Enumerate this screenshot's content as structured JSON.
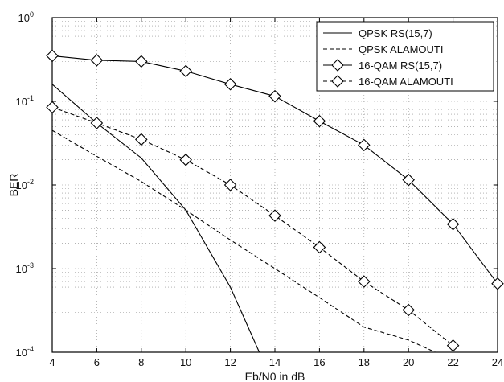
{
  "chart_data": {
    "type": "line",
    "title": "",
    "xlabel": "Eb/N0 in dB",
    "ylabel": "BER",
    "xlim": [
      4,
      24
    ],
    "ylim": [
      0.0001,
      1
    ],
    "yscale": "log",
    "grid": true,
    "legend_position": "top-right",
    "x_ticks": [
      4,
      6,
      8,
      10,
      12,
      14,
      16,
      18,
      20,
      22,
      24
    ],
    "x_tick_labels": [
      "4",
      "6",
      "8",
      "10",
      "12",
      "14",
      "16",
      "18",
      "20",
      "22",
      "24"
    ],
    "y_ticks": [
      {
        "value": 1,
        "base": "10",
        "exp": "0"
      },
      {
        "value": 0.1,
        "base": "10",
        "exp": "-1"
      },
      {
        "value": 0.01,
        "base": "10",
        "exp": "-2"
      },
      {
        "value": 0.001,
        "base": "10",
        "exp": "-3"
      },
      {
        "value": 0.0001,
        "base": "10",
        "exp": "-4"
      }
    ],
    "series": [
      {
        "name": "QPSK RS(15,7)",
        "style": "solid",
        "marker": "none",
        "x": [
          4,
          6,
          8,
          10,
          12,
          13.3
        ],
        "y": [
          0.16,
          0.055,
          0.021,
          0.005,
          0.0006,
          0.0001
        ]
      },
      {
        "name": "QPSK ALAMOUTI",
        "style": "dashed",
        "marker": "none",
        "x": [
          4,
          6,
          8,
          10,
          12,
          14,
          16,
          18,
          20,
          21.2
        ],
        "y": [
          0.045,
          0.022,
          0.011,
          0.005,
          0.0022,
          0.001,
          0.00045,
          0.0002,
          0.00014,
          0.0001
        ]
      },
      {
        "name": "16-QAM RS(15,7)",
        "style": "solid",
        "marker": "diamond",
        "x": [
          4,
          6,
          8,
          10,
          12,
          14,
          16,
          18,
          20,
          22,
          24
        ],
        "y": [
          0.35,
          0.31,
          0.3,
          0.23,
          0.16,
          0.115,
          0.058,
          0.03,
          0.0115,
          0.0034,
          0.00066
        ]
      },
      {
        "name": "16-QAM ALAMOUTI",
        "style": "dashed",
        "marker": "diamond",
        "x": [
          4,
          6,
          8,
          10,
          12,
          14,
          16,
          18,
          20,
          22
        ],
        "y": [
          0.085,
          0.055,
          0.035,
          0.02,
          0.01,
          0.0043,
          0.0018,
          0.0007,
          0.00032,
          0.00012
        ]
      }
    ]
  }
}
